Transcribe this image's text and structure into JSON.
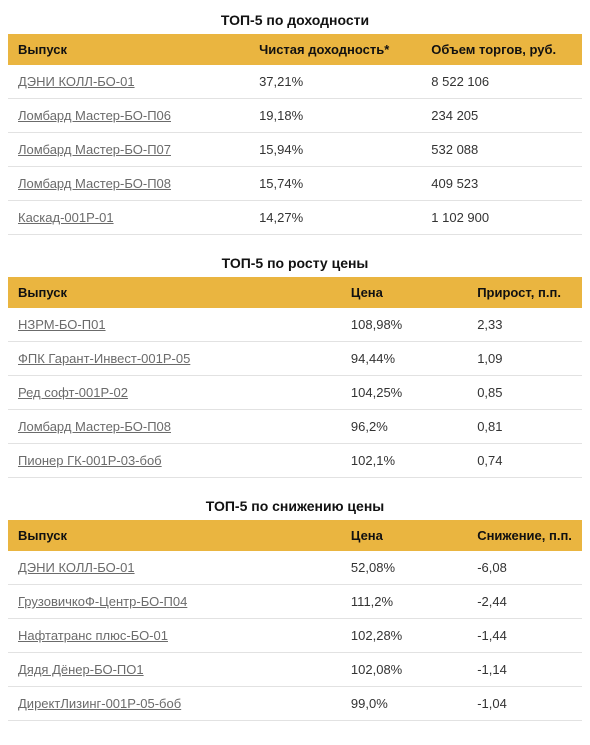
{
  "colors": {
    "header_bg": "#eab540",
    "row_border": "#e2e2e2",
    "link_text": "#6b6b6b",
    "text": "#222222",
    "background": "#ffffff"
  },
  "typography": {
    "title_fontsize_pt": 11,
    "cell_fontsize_pt": 10,
    "font_family": "Arial"
  },
  "tables": [
    {
      "title": "ТОП-5 по доходности",
      "columns": [
        "Выпуск",
        "Чистая доходность*",
        "Объем торгов, руб."
      ],
      "col_widths_pct": [
        42,
        30,
        28
      ],
      "rows": [
        [
          "ДЭНИ КОЛЛ-БО-01",
          "37,21%",
          "8 522 106"
        ],
        [
          "Ломбард Мастер-БО-П06",
          "19,18%",
          "234 205"
        ],
        [
          "Ломбард Мастер-БО-П07",
          "15,94%",
          "532 088"
        ],
        [
          "Ломбард Мастер-БО-П08",
          "15,74%",
          "409 523"
        ],
        [
          "Каскад-001Р-01",
          "14,27%",
          "1 102 900"
        ]
      ]
    },
    {
      "title": "ТОП-5 по росту цены",
      "columns": [
        "Выпуск",
        "Цена",
        "Прирост, п.п."
      ],
      "col_widths_pct": [
        58,
        22,
        20
      ],
      "rows": [
        [
          "НЗРМ-БО-П01",
          "108,98%",
          "2,33"
        ],
        [
          "ФПК Гарант-Инвест-001Р-05",
          "94,44%",
          "1,09"
        ],
        [
          "Ред софт-001Р-02",
          "104,25%",
          "0,85"
        ],
        [
          "Ломбард Мастер-БО-П08",
          "96,2%",
          "0,81"
        ],
        [
          "Пионер ГК-001Р-03-боб",
          "102,1%",
          "0,74"
        ]
      ]
    },
    {
      "title": "ТОП-5 по снижению цены",
      "columns": [
        "Выпуск",
        "Цена",
        "Снижение, п.п."
      ],
      "col_widths_pct": [
        58,
        22,
        20
      ],
      "rows": [
        [
          "ДЭНИ КОЛЛ-БО-01",
          "52,08%",
          "-6,08"
        ],
        [
          "ГрузовичкоФ-Центр-БО-П04",
          "111,2%",
          "-2,44"
        ],
        [
          "Нафтатранс плюс-БО-01",
          "102,28%",
          "-1,44"
        ],
        [
          "Дядя Дёнер-БО-ПО1",
          "102,08%",
          "-1,14"
        ],
        [
          "ДиректЛизинг-001Р-05-боб",
          "99,0%",
          "-1,04"
        ]
      ]
    }
  ]
}
